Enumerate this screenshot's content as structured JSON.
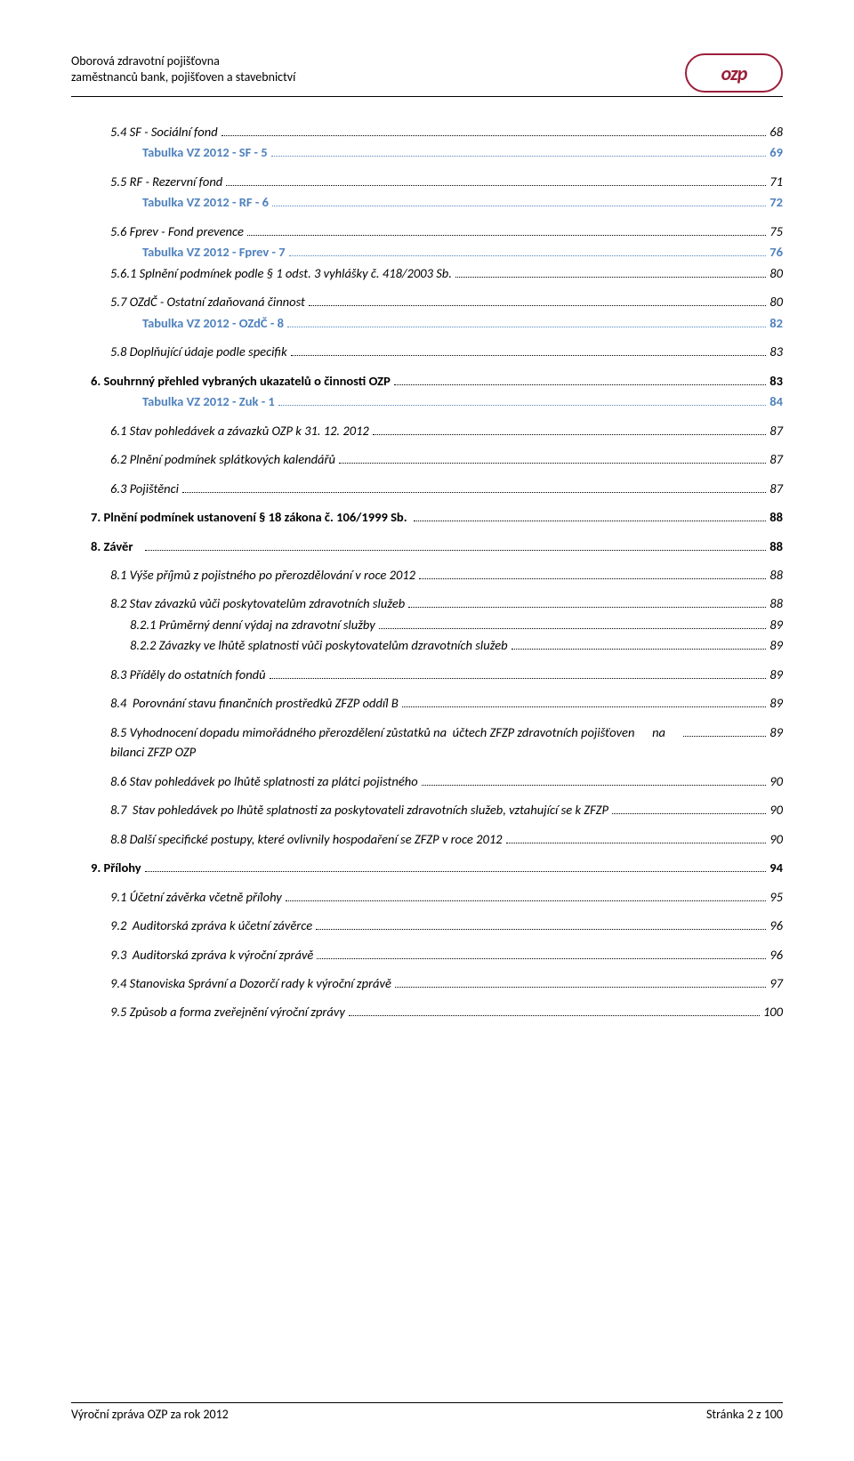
{
  "header": {
    "line1": "Oborová zdravotní pojišťovna",
    "line2": "zaměstnanců bank, pojišťoven a stavebnictví",
    "logo_text": "ozp",
    "logo_color": "#9c1f3a"
  },
  "toc": [
    {
      "level": "lvl2",
      "label": "5.4 SF - Sociální fond",
      "page": "68",
      "top": true
    },
    {
      "level": "tbl",
      "label": "Tabulka VZ 2012 - SF - 5",
      "page": "69"
    },
    {
      "level": "lvl2",
      "label": "5.5 RF - Rezervní fond",
      "page": "71",
      "top": true
    },
    {
      "level": "tbl",
      "label": "Tabulka VZ 2012 - RF - 6",
      "page": "72"
    },
    {
      "level": "lvl2",
      "label": "5.6 Fprev - Fond prevence",
      "page": "75",
      "top": true
    },
    {
      "level": "tbl",
      "label": "Tabulka VZ 2012 - Fprev - 7",
      "page": "76"
    },
    {
      "level": "lvl2",
      "label": "5.6.1 Splnění podmínek podle § 1 odst. 3 vyhlášky č. 418/2003 Sb.",
      "page": "80"
    },
    {
      "level": "lvl2",
      "label": "5.7 OZdČ - Ostatní zdaňovaná činnost",
      "page": "80",
      "top": true
    },
    {
      "level": "tbl",
      "label": "Tabulka VZ 2012 - OZdČ - 8",
      "page": "82"
    },
    {
      "level": "lvl2",
      "label": "5.8 Doplňující údaje podle specifik",
      "page": "83",
      "top": true
    },
    {
      "level": "lvl1",
      "label": "6. Souhrnný přehled vybraných ukazatelů o činnosti OZP",
      "page": "83",
      "top": true
    },
    {
      "level": "tbl",
      "label": "Tabulka VZ 2012 - Zuk - 1",
      "page": "84"
    },
    {
      "level": "lvl2",
      "label": "6.1 Stav pohledávek a závazků OZP k 31. 12. 2012",
      "page": "87",
      "top": true
    },
    {
      "level": "lvl2",
      "label": "6.2 Plnění podmínek splátkových kalendářů",
      "page": "87",
      "top": true
    },
    {
      "level": "lvl2",
      "label": "6.3 Pojištěnci",
      "page": "87",
      "top": true
    },
    {
      "level": "lvl1",
      "label": "7. Plnění podmínek ustanovení § 18 zákona č. 106/1999 Sb. ",
      "page": "88",
      "top": true
    },
    {
      "level": "lvl1",
      "label": "8. Závěr   ",
      "page": "88",
      "top": true
    },
    {
      "level": "lvl2",
      "label": "8.1 Výše příjmů z pojistného po přerozdělování v roce 2012",
      "page": "88",
      "top": true
    },
    {
      "level": "lvl2",
      "label": "8.2 Stav závazků vůči poskytovatelům zdravotních služeb",
      "page": "88",
      "top": true
    },
    {
      "level": "lvl3",
      "label": "8.2.1 Průměrný denní výdaj na zdravotní služby",
      "page": "89"
    },
    {
      "level": "lvl3",
      "label": "8.2.2 Závazky ve lhůtě splatnosti vůči poskytovatelům dzravotních služeb",
      "page": "89"
    },
    {
      "level": "lvl2",
      "label": "8.3 Příděly do ostatních fondů",
      "page": "89",
      "top": true
    },
    {
      "level": "lvl2",
      "label": "8.4  Porovnání stavu finančních prostředků ZFZP oddíl B",
      "page": "89",
      "top": true
    },
    {
      "level": "lvl2",
      "label": "8.5 Vyhodnocení dopadu mimořádného přerozdělení zůstatků na  účtech ZFZP zdravotních pojišťoven      na bilanci ZFZP OZP",
      "page": "89",
      "top": true,
      "multiline": true
    },
    {
      "level": "lvl2",
      "label": "8.6 Stav pohledávek po lhůtě splatnosti za plátci pojistného",
      "page": "90",
      "top": true
    },
    {
      "level": "lvl2",
      "label": "8.7  Stav pohledávek po lhůtě splatnosti za poskytovateli zdravotních služeb, vztahující se k ZFZP",
      "page": "90",
      "top": true
    },
    {
      "level": "lvl2",
      "label": "8.8 Další specifické postupy, které ovlivnily hospodaření se ZFZP v roce 2012",
      "page": "90",
      "top": true
    },
    {
      "level": "lvl1",
      "label": "9. Přílohy",
      "page": "94",
      "top": true
    },
    {
      "level": "lvl2",
      "label": "9.1 Účetní závěrka včetně přílohy",
      "page": "95",
      "top": true
    },
    {
      "level": "lvl2",
      "label": "9.2  Auditorská zpráva k účetní závěrce",
      "page": "96",
      "top": true
    },
    {
      "level": "lvl2",
      "label": "9.3  Auditorská zpráva k výroční zprávě",
      "page": "96",
      "top": true
    },
    {
      "level": "lvl2",
      "label": "9.4 Stanoviska Správní a Dozorčí rady k výroční zprávě",
      "page": "97",
      "top": true
    },
    {
      "level": "lvl2",
      "label": "9.5 Způsob a forma zveřejnění výroční zprávy",
      "page": "100",
      "top": true
    }
  ],
  "footer": {
    "left": "Výroční zpráva OZP za rok 2012",
    "right": "Stránka 2 z 100"
  },
  "colors": {
    "link": "#4f81bd",
    "text": "#000000",
    "accent": "#9c1f3a"
  }
}
